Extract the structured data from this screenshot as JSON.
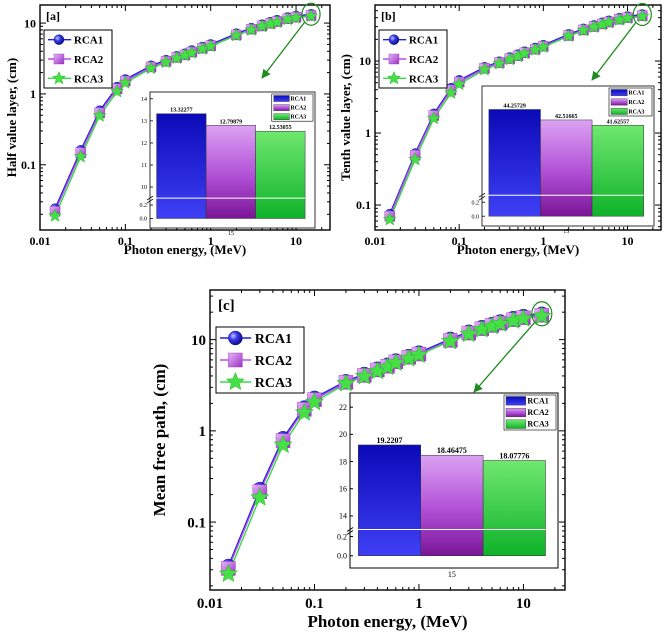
{
  "colors": {
    "rca1": "#1f1fe0",
    "rca2": "#b84fe8",
    "rca3": "#39d94a",
    "rca1_fill_top": "#0a0ab8",
    "rca1_fill_bot": "#3f3ff5",
    "rca2_fill_top": "#d98cf0",
    "rca2_fill_bot": "#8a1fa8",
    "rca3_fill_top": "#59e05f",
    "rca3_fill_bot": "#0fb82a",
    "annot": "#1f8a1f"
  },
  "chart_data": [
    {
      "type": "line",
      "panel_label": "[a]",
      "ylabel": "Half value layer, (cm)",
      "xlabel": "Photon energy, (MeV)",
      "xscale": "log",
      "yscale": "log",
      "xlim": [
        0.01,
        25
      ],
      "ylim": [
        0.012,
        18
      ],
      "x_ticks": [
        "0.01",
        "0.1",
        "1",
        "10"
      ],
      "y_ticks": [
        "0.1",
        "1",
        "10"
      ],
      "x": [
        0.015,
        0.03,
        0.05,
        0.08,
        0.1,
        0.2,
        0.3,
        0.4,
        0.5,
        0.6,
        0.8,
        1.0,
        2.0,
        3.0,
        4.0,
        5.0,
        6.0,
        8.0,
        10.0,
        15.0
      ],
      "series": [
        {
          "name": "RCA1",
          "values": [
            0.024,
            0.16,
            0.58,
            1.25,
            1.6,
            2.5,
            3.0,
            3.4,
            3.7,
            4.1,
            4.6,
            5.0,
            7.1,
            8.5,
            9.5,
            10.3,
            11.0,
            12.0,
            12.6,
            13.32277
          ]
        },
        {
          "name": "RCA2",
          "values": [
            0.022,
            0.148,
            0.54,
            1.18,
            1.52,
            2.4,
            2.88,
            3.27,
            3.55,
            3.9,
            4.4,
            4.8,
            6.8,
            8.2,
            9.1,
            9.9,
            10.5,
            11.5,
            12.1,
            12.79879
          ]
        },
        {
          "name": "RCA3",
          "values": [
            0.019,
            0.13,
            0.49,
            1.08,
            1.43,
            2.3,
            2.8,
            3.2,
            3.5,
            3.8,
            4.3,
            4.7,
            6.7,
            8.0,
            9.0,
            9.7,
            10.3,
            11.3,
            11.9,
            12.53055
          ]
        }
      ],
      "inset": {
        "type": "bar",
        "category": "15",
        "series": [
          "RCA1",
          "RCA2",
          "RCA3"
        ],
        "values": [
          13.32277,
          12.79879,
          12.53055
        ],
        "value_labels": [
          "13.32277",
          "12.79879",
          "12.53055"
        ],
        "ylim_upper": [
          9.5,
          14
        ],
        "y_ticks": [
          "14",
          "13",
          "12",
          "11",
          "10",
          "0.2",
          "0.0"
        ]
      }
    },
    {
      "type": "line",
      "panel_label": "[b]",
      "ylabel": "Tenth value layer, (cm)",
      "xlabel": "Photon energy, (MeV)",
      "xscale": "log",
      "yscale": "log",
      "xlim": [
        0.01,
        25
      ],
      "ylim": [
        0.045,
        60
      ],
      "x_ticks": [
        "0.01",
        "0.1",
        "1",
        "10"
      ],
      "y_ticks": [
        "0.1",
        "1",
        "10"
      ],
      "x": [
        0.015,
        0.03,
        0.05,
        0.08,
        0.1,
        0.2,
        0.3,
        0.4,
        0.5,
        0.6,
        0.8,
        1.0,
        2.0,
        3.0,
        4.0,
        5.0,
        6.0,
        8.0,
        10.0,
        15.0
      ],
      "series": [
        {
          "name": "RCA1",
          "values": [
            0.075,
            0.52,
            1.85,
            4.2,
            5.4,
            8.2,
            9.8,
            11.2,
            12.3,
            13.5,
            15.2,
            16.6,
            23.5,
            28.0,
            31.3,
            34.0,
            36.2,
            39.5,
            41.5,
            44.25729
          ]
        },
        {
          "name": "RCA2",
          "values": [
            0.07,
            0.49,
            1.75,
            3.95,
            5.1,
            7.9,
            9.5,
            10.8,
            11.8,
            13.0,
            14.6,
            16.0,
            22.6,
            27.0,
            30.1,
            32.7,
            34.8,
            38.0,
            40.0,
            42.51665
          ]
        },
        {
          "name": "RCA3",
          "values": [
            0.063,
            0.43,
            1.6,
            3.6,
            4.75,
            7.6,
            9.2,
            10.5,
            11.6,
            12.7,
            14.3,
            15.6,
            22.2,
            26.5,
            29.6,
            32.1,
            34.2,
            37.3,
            39.2,
            41.62557
          ]
        }
      ],
      "inset": {
        "type": "bar",
        "category": "15",
        "series": [
          "RCA1",
          "RCA2",
          "RCA3"
        ],
        "values": [
          44.25729,
          42.51665,
          41.62557
        ],
        "value_labels": [
          "44.25729",
          "42.51665",
          "41.62557"
        ],
        "ylim_upper": [
          30,
          47
        ],
        "y_ticks": [
          "0.2",
          "0.0"
        ]
      }
    },
    {
      "type": "line",
      "panel_label": "[c]",
      "ylabel": "Mean free path, (cm)",
      "xlabel": "Photon energy, (MeV)",
      "xscale": "log",
      "yscale": "log",
      "xlim": [
        0.01,
        25
      ],
      "ylim": [
        0.018,
        35
      ],
      "x_ticks": [
        "0.01",
        "0.1",
        "1",
        "10"
      ],
      "y_ticks": [
        "0.1",
        "1",
        "10"
      ],
      "x": [
        0.015,
        0.03,
        0.05,
        0.08,
        0.1,
        0.2,
        0.3,
        0.4,
        0.5,
        0.6,
        0.8,
        1.0,
        2.0,
        3.0,
        4.0,
        5.0,
        6.0,
        8.0,
        10.0,
        15.0
      ],
      "series": [
        {
          "name": "RCA1",
          "values": [
            0.033,
            0.23,
            0.83,
            1.8,
            2.3,
            3.5,
            4.2,
            4.8,
            5.3,
            5.9,
            6.6,
            7.2,
            10.2,
            12.2,
            13.7,
            14.8,
            15.8,
            17.2,
            18.1,
            19.2207
          ]
        },
        {
          "name": "RCA2",
          "values": [
            0.031,
            0.215,
            0.78,
            1.72,
            2.2,
            3.4,
            4.05,
            4.65,
            5.1,
            5.7,
            6.4,
            6.95,
            9.8,
            11.8,
            13.2,
            14.3,
            15.2,
            16.5,
            17.4,
            18.46475
          ]
        },
        {
          "name": "RCA3",
          "values": [
            0.027,
            0.185,
            0.7,
            1.58,
            2.06,
            3.3,
            3.95,
            4.5,
            5.0,
            5.55,
            6.2,
            6.8,
            9.6,
            11.5,
            12.9,
            14.0,
            14.9,
            16.1,
            17.0,
            18.07776
          ]
        }
      ],
      "inset": {
        "type": "bar",
        "category": "15",
        "series": [
          "RCA1",
          "RCA2",
          "RCA3"
        ],
        "values": [
          19.2207,
          18.46475,
          18.07776
        ],
        "value_labels": [
          "19.2207",
          "18.46475",
          "18.07776"
        ],
        "ylim_upper": [
          13,
          22.4
        ],
        "y_ticks": [
          "22",
          "20",
          "18",
          "16",
          "14",
          "0.2",
          "0.0"
        ]
      }
    }
  ]
}
